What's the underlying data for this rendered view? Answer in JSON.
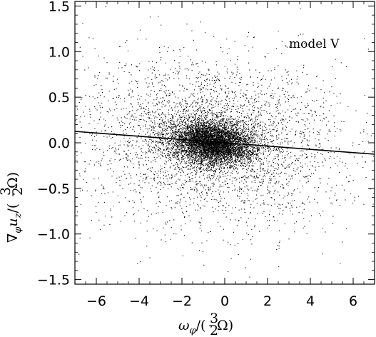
{
  "chart_data": {
    "type": "scatter",
    "xlabel": "ωφ/(32Ω)",
    "ylabel": "∇φuz/(32Ω)",
    "annotation": "model V",
    "xlim": [
      -7,
      7
    ],
    "ylim": [
      -1.55,
      1.55
    ],
    "xticks": [
      -6,
      -4,
      -2,
      0,
      2,
      4,
      6
    ],
    "xtick_labels": [
      "−6",
      "−4",
      "−2",
      "0",
      "2",
      "4",
      "6"
    ],
    "yticks": [
      -1.5,
      -1.0,
      -0.5,
      0.0,
      0.5,
      1.0,
      1.5
    ],
    "ytick_labels": [
      "−1.5",
      "−1.0",
      "−0.5",
      "0.0",
      "0.5",
      "1.0",
      "1.5"
    ],
    "grid": false,
    "fit_line": {
      "slope": -0.0179,
      "intercept": 0.0,
      "x": [
        -7,
        7
      ]
    },
    "scatter_cloud": {
      "approx_points": 9000,
      "center": [
        -0.6,
        0.0
      ],
      "core_std": [
        1.0,
        0.12
      ],
      "halo_std": [
        3.0,
        0.45
      ],
      "tilt": -0.018
    },
    "series": [
      {
        "x": [
          -0.8,
          -0.5,
          -1.2,
          -0.3,
          0.1,
          -1.5,
          0.4,
          -0.9,
          -2.1,
          0.9,
          1.5,
          -2.8,
          2.3,
          -3.6,
          3.1,
          -4.5,
          4.2,
          -5.3,
          5.6,
          -6.1,
          6.4,
          -1.8,
          1.1,
          -0.2,
          0.6
        ],
        "y": [
          0.02,
          -0.05,
          0.08,
          0.12,
          -0.1,
          -0.18,
          0.2,
          0.3,
          -0.32,
          0.42,
          -0.38,
          0.55,
          -0.62,
          0.28,
          0.7,
          -0.45,
          0.35,
          0.18,
          -0.25,
          0.4,
          -0.15,
          -0.75,
          0.88,
          1.05,
          -1.1
        ]
      }
    ]
  }
}
